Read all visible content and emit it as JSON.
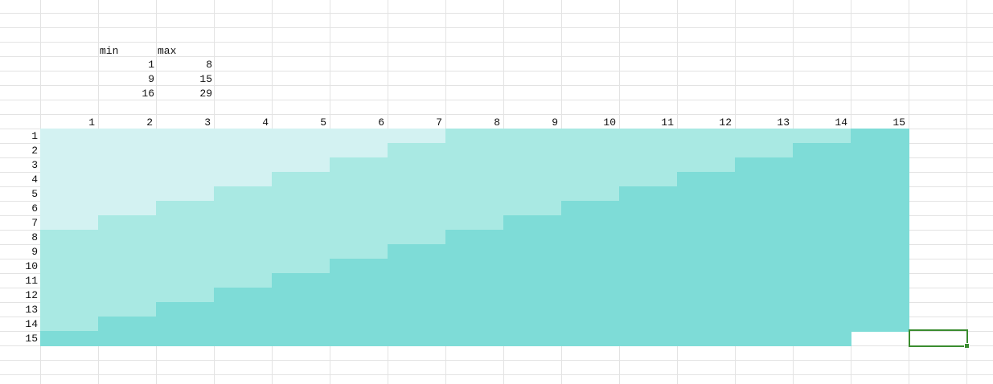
{
  "colors": {
    "level1": "#d3f2f2",
    "level2": "#a9e9e3",
    "level3": "#7edcd7",
    "gridline": "#e3e3e3",
    "selection": "#3a8c2f"
  },
  "legend": {
    "headers": [
      "min",
      "max"
    ],
    "rows": [
      {
        "min": "1",
        "max": "8"
      },
      {
        "min": "9",
        "max": "15"
      },
      {
        "min": "16",
        "max": "29"
      }
    ]
  },
  "column_headers": [
    "1",
    "2",
    "3",
    "4",
    "5",
    "6",
    "7",
    "8",
    "9",
    "10",
    "11",
    "12",
    "13",
    "14",
    "15"
  ],
  "row_headers": [
    "1",
    "2",
    "3",
    "4",
    "5",
    "6",
    "7",
    "8",
    "9",
    "10",
    "11",
    "12",
    "13",
    "14",
    "15"
  ],
  "heatmap": {
    "rule": "cell value = row + column; shaded by min/max band",
    "rows": 15,
    "columns": 15
  }
}
